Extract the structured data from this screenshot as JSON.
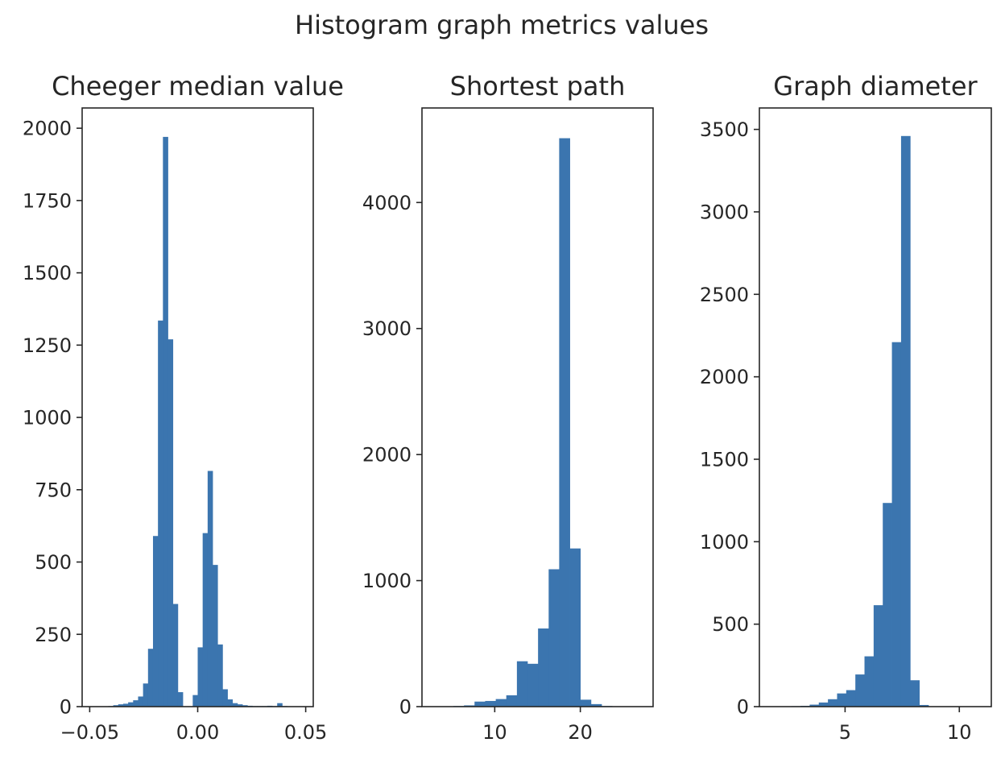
{
  "figure": {
    "title": "Histogram graph metrics values",
    "bar_color": "#3b75af"
  },
  "chart_data": [
    {
      "type": "bar",
      "title": "Cheeger median value",
      "xlabel": "",
      "ylabel": "",
      "xlim": [
        -0.0535,
        0.0535
      ],
      "ylim": [
        0,
        2070
      ],
      "xticks": [
        -0.05,
        0.0,
        0.05
      ],
      "xtick_labels": [
        "−0.05",
        "0.00",
        "0.05"
      ],
      "yticks": [
        0,
        250,
        500,
        750,
        1000,
        1250,
        1500,
        1750,
        2000
      ],
      "yticks_labels": [
        "0",
        "250",
        "500",
        "750",
        "1000",
        "1250",
        "1500",
        "1750",
        "2000"
      ],
      "bin_edges": [
        -0.0414,
        -0.0391,
        -0.0368,
        -0.0345,
        -0.0322,
        -0.0299,
        -0.0276,
        -0.0253,
        -0.023,
        -0.0207,
        -0.0184,
        -0.0161,
        -0.0138,
        -0.0115,
        -0.0092,
        -0.0069,
        -0.0046,
        -0.0023,
        0.0,
        0.0023,
        0.0046,
        0.0069,
        0.0092,
        0.0115,
        0.0138,
        0.0161,
        0.0184,
        0.0207,
        0.023,
        0.0253,
        0.0276,
        0.0299,
        0.0322,
        0.0345,
        0.0368,
        0.0391,
        0.0414,
        0.0437
      ],
      "values": [
        2,
        5,
        8,
        10,
        15,
        22,
        35,
        80,
        200,
        590,
        1335,
        1970,
        1270,
        355,
        50,
        0,
        0,
        40,
        205,
        600,
        815,
        490,
        215,
        60,
        25,
        12,
        8,
        5,
        3,
        2,
        2,
        2,
        3,
        2,
        12,
        2,
        1
      ]
    },
    {
      "type": "bar",
      "title": "Shortest path",
      "xlabel": "",
      "ylabel": "",
      "xlim": [
        1.5,
        28.5
      ],
      "ylim": [
        0,
        4750
      ],
      "xticks": [
        10,
        20
      ],
      "xtick_labels": [
        "10",
        "20"
      ],
      "yticks": [
        0,
        1000,
        2000,
        3000,
        4000
      ],
      "yticks_labels": [
        "0",
        "1000",
        "2000",
        "3000",
        "4000"
      ],
      "bin_edges": [
        2.7,
        3.94,
        5.17,
        6.41,
        7.64,
        8.88,
        10.12,
        11.35,
        12.59,
        13.82,
        15.06,
        16.3,
        17.53,
        18.77,
        20.0,
        21.24,
        22.48,
        23.71,
        24.95,
        26.18,
        27.42
      ],
      "values": [
        2,
        3,
        5,
        10,
        40,
        45,
        60,
        90,
        360,
        340,
        620,
        1090,
        4510,
        1255,
        55,
        20,
        5,
        2,
        1,
        1
      ]
    },
    {
      "type": "bar",
      "title": "Graph diameter",
      "xlabel": "",
      "ylabel": "",
      "xlim": [
        1.25,
        11.4
      ],
      "ylim": [
        0,
        3630
      ],
      "xticks": [
        5,
        10
      ],
      "xtick_labels": [
        "5",
        "10"
      ],
      "yticks": [
        0,
        500,
        1000,
        1500,
        2000,
        2500,
        3000,
        3500
      ],
      "yticks_labels": [
        "0",
        "500",
        "1000",
        "1500",
        "2000",
        "2500",
        "3000",
        "3500"
      ],
      "bin_edges": [
        1.85,
        2.25,
        2.65,
        3.05,
        3.45,
        3.85,
        4.25,
        4.65,
        5.05,
        5.45,
        5.85,
        6.25,
        6.65,
        7.05,
        7.45,
        7.85,
        8.25,
        8.65,
        9.05,
        9.45,
        9.85,
        10.25
      ],
      "values": [
        1,
        2,
        3,
        5,
        12,
        25,
        45,
        80,
        100,
        195,
        305,
        615,
        1235,
        2210,
        3460,
        160,
        10,
        2,
        1,
        0,
        1
      ]
    }
  ]
}
